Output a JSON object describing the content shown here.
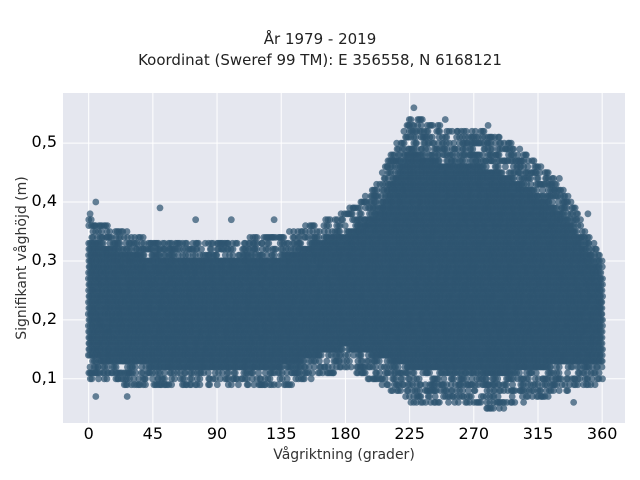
{
  "title_lines": [
    "År 1979 - 2019",
    "Koordinat (Sweref 99 TM): E 356558, N 6168121"
  ],
  "chart_data": {
    "type": "scatter",
    "title": "År 1979 - 2019 / Koordinat (Sweref 99 TM): E 356558, N 6168121",
    "xlabel": "Vågriktning (grader)",
    "ylabel": "Signifikant våghöjd (m)",
    "xlim": [
      -18,
      376
    ],
    "ylim": [
      0.025,
      0.585
    ],
    "xticks": [
      0,
      45,
      90,
      135,
      180,
      225,
      270,
      315,
      360
    ],
    "xtick_labels": [
      "0",
      "45",
      "90",
      "135",
      "180",
      "225",
      "270",
      "315",
      "360"
    ],
    "yticks": [
      0.1,
      0.2,
      0.3,
      0.4,
      0.5
    ],
    "ytick_labels": [
      "0,1",
      "0,2",
      "0,3",
      "0,4",
      "0,5"
    ],
    "grid": true,
    "marker_color": "#2e5570",
    "background_color": "#e5e7ef",
    "envelope": {
      "direction_deg": [
        0,
        45,
        90,
        135,
        180,
        200,
        215,
        225,
        240,
        255,
        270,
        285,
        300,
        315,
        330,
        345,
        360
      ],
      "max_height_m": [
        0.37,
        0.33,
        0.33,
        0.34,
        0.38,
        0.42,
        0.49,
        0.55,
        0.53,
        0.52,
        0.52,
        0.51,
        0.49,
        0.46,
        0.43,
        0.37,
        0.3
      ],
      "min_height_m": [
        0.1,
        0.09,
        0.09,
        0.09,
        0.12,
        0.1,
        0.08,
        0.06,
        0.06,
        0.06,
        0.06,
        0.05,
        0.06,
        0.07,
        0.08,
        0.09,
        0.1
      ]
    },
    "outliers": [
      {
        "x": 5,
        "y": 0.4
      },
      {
        "x": 50,
        "y": 0.39
      },
      {
        "x": 75,
        "y": 0.37
      },
      {
        "x": 100,
        "y": 0.37
      },
      {
        "x": 130,
        "y": 0.37
      },
      {
        "x": 1,
        "y": 0.38
      },
      {
        "x": 27,
        "y": 0.07
      },
      {
        "x": 5,
        "y": 0.07
      },
      {
        "x": 350,
        "y": 0.38
      },
      {
        "x": 340,
        "y": 0.06
      },
      {
        "x": 280,
        "y": 0.53
      },
      {
        "x": 250,
        "y": 0.54
      },
      {
        "x": 228,
        "y": 0.56
      },
      {
        "x": 330,
        "y": 0.44
      },
      {
        "x": 320,
        "y": 0.45
      },
      {
        "x": 355,
        "y": 0.09
      }
    ]
  }
}
